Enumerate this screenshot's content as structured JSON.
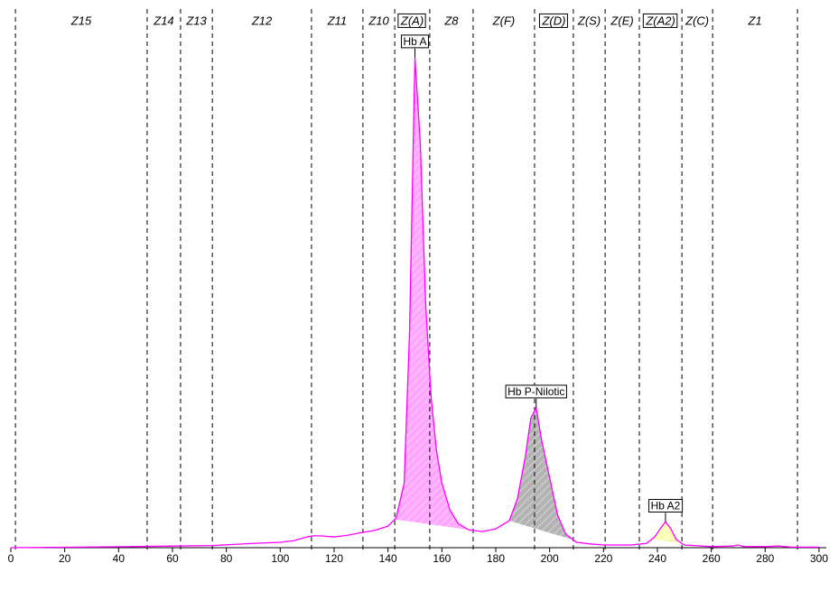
{
  "chart_data": {
    "type": "line",
    "x": [
      0,
      45,
      60,
      75,
      90,
      100,
      105,
      110,
      112,
      115,
      120,
      125,
      130,
      135,
      140,
      143,
      146,
      148,
      150,
      152,
      154,
      156,
      158,
      160,
      163,
      166,
      170,
      175,
      180,
      185,
      188,
      191,
      193,
      195,
      197,
      200,
      203,
      206,
      210,
      215,
      220,
      230,
      236,
      239,
      241,
      243,
      245,
      247,
      250,
      260,
      268,
      270,
      272,
      280,
      285,
      290,
      300
    ],
    "values": [
      0,
      0.2,
      0.3,
      0.4,
      0.8,
      1.0,
      1.3,
      2.0,
      2.2,
      2.2,
      2.0,
      2.3,
      2.8,
      3.2,
      4.0,
      5.5,
      12,
      40,
      91,
      75,
      45,
      28,
      18,
      12,
      7,
      4.5,
      3.3,
      3.0,
      3.5,
      5,
      9,
      17,
      24,
      26,
      20,
      13,
      6,
      2.5,
      1.0,
      0.7,
      0.5,
      0.5,
      0.8,
      2,
      3.5,
      4.8,
      3.5,
      1.5,
      0.5,
      0.2,
      0.3,
      0.5,
      0.2,
      0.2,
      0.3,
      0.1,
      0.1
    ],
    "color": "#ff00ff",
    "xlim": [
      0,
      300
    ],
    "ylim": [
      0,
      100
    ],
    "xticks": [
      0,
      20,
      40,
      60,
      80,
      100,
      120,
      140,
      160,
      180,
      200,
      220,
      240,
      260,
      280,
      300
    ],
    "zone_bounds": [
      1.7,
      50.6,
      63.0,
      74.8,
      111.6,
      130.7,
      142.5,
      155.5,
      171.6,
      194.4,
      208.8,
      220.6,
      233.3,
      249.1,
      260.5,
      292.0
    ],
    "zones": [
      {
        "label": "Z15",
        "boxed": false
      },
      {
        "label": "Z14",
        "boxed": false
      },
      {
        "label": "Z13",
        "boxed": false
      },
      {
        "label": "Z12",
        "boxed": false
      },
      {
        "label": "Z11",
        "boxed": false
      },
      {
        "label": "Z10",
        "boxed": false
      },
      {
        "label": "Z(A)",
        "boxed": true
      },
      {
        "label": "Z8",
        "boxed": false
      },
      {
        "label": "Z(F)",
        "boxed": false
      },
      {
        "label": "Z(D)",
        "boxed": true
      },
      {
        "label": "Z(S)",
        "boxed": false
      },
      {
        "label": "Z(E)",
        "boxed": false
      },
      {
        "label": "Z(A2)",
        "boxed": true
      },
      {
        "label": "Z(C)",
        "boxed": false
      },
      {
        "label": "Z1",
        "boxed": false
      }
    ],
    "peaks": [
      {
        "label": "Hb A",
        "start": 142.5,
        "end": 171.6,
        "color": "#ff88ff"
      },
      {
        "label": "Hb P-Nilotic",
        "start": 185,
        "end": 208.8,
        "color": "#999999"
      },
      {
        "label": "Hb A2",
        "start": 238,
        "end": 249.1,
        "color": "#ffff99"
      }
    ]
  }
}
